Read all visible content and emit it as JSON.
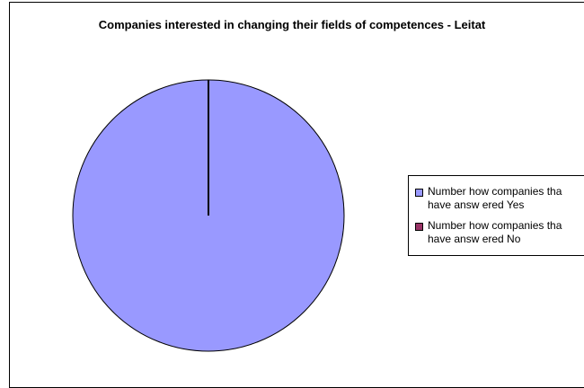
{
  "chart_data": {
    "type": "pie",
    "title": "Companies interested in changing their fields of competences - Leitat",
    "categories": [
      "Number how companies that have answered Yes",
      "Number how companies that have answered No"
    ],
    "values": [
      100,
      0
    ],
    "colors": [
      "#9999ff",
      "#993366"
    ],
    "legend_position": "right"
  },
  "legend": {
    "items": [
      {
        "line1": "Number how companies tha",
        "line2": "have answ ered Yes",
        "color": "#9999ff"
      },
      {
        "line1": "Number how companies tha",
        "line2": "have answ ered No",
        "color": "#993366"
      }
    ]
  }
}
